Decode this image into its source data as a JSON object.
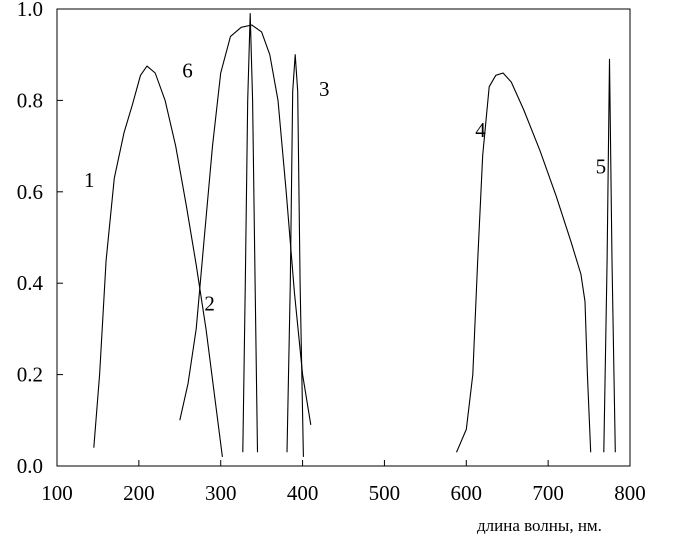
{
  "chart_data": {
    "type": "line",
    "title": "",
    "xlabel": "длина волны, нм.",
    "ylabel": "",
    "xlim": [
      100,
      800
    ],
    "ylim": [
      0,
      1.0
    ],
    "xticks": [
      100,
      200,
      300,
      400,
      500,
      600,
      700,
      800
    ],
    "yticks": [
      0.0,
      0.2,
      0.4,
      0.6,
      0.8,
      1.0
    ],
    "ytick_labels": [
      "0.0",
      "0.2",
      "0.4",
      "0.6",
      "0.8",
      "1.0"
    ],
    "grid": false,
    "legend": "none",
    "series": [
      {
        "name": "1",
        "label_at": [
          133,
          0.61
        ],
        "points": [
          [
            145,
            0.04
          ],
          [
            152,
            0.2
          ],
          [
            160,
            0.45
          ],
          [
            170,
            0.63
          ],
          [
            182,
            0.73
          ],
          [
            192,
            0.79
          ],
          [
            202,
            0.855
          ],
          [
            210,
            0.875
          ],
          [
            220,
            0.86
          ],
          [
            232,
            0.8
          ],
          [
            245,
            0.7
          ],
          [
            258,
            0.57
          ],
          [
            270,
            0.44
          ],
          [
            282,
            0.3
          ],
          [
            292,
            0.16
          ],
          [
            302,
            0.02
          ]
        ]
      },
      {
        "name": "2",
        "label_at": [
          280,
          0.34
        ],
        "points": [
          [
            327,
            0.03
          ],
          [
            330,
            0.4
          ],
          [
            333,
            0.8
          ],
          [
            336,
            0.99
          ],
          [
            339,
            0.8
          ],
          [
            342,
            0.4
          ],
          [
            345,
            0.03
          ]
        ]
      },
      {
        "name": "3",
        "label_at": [
          420,
          0.81
        ],
        "points": [
          [
            381,
            0.03
          ],
          [
            385,
            0.4
          ],
          [
            388,
            0.82
          ],
          [
            391,
            0.9
          ],
          [
            394,
            0.82
          ],
          [
            397,
            0.4
          ],
          [
            401,
            0.02
          ]
        ]
      },
      {
        "name": "4",
        "label_at": [
          611,
          0.72
        ],
        "points": [
          [
            588,
            0.03
          ],
          [
            600,
            0.08
          ],
          [
            608,
            0.2
          ],
          [
            614,
            0.45
          ],
          [
            620,
            0.68
          ],
          [
            628,
            0.83
          ],
          [
            636,
            0.855
          ],
          [
            645,
            0.86
          ],
          [
            655,
            0.84
          ],
          [
            670,
            0.78
          ],
          [
            690,
            0.69
          ],
          [
            710,
            0.59
          ],
          [
            728,
            0.49
          ],
          [
            740,
            0.42
          ],
          [
            745,
            0.36
          ],
          [
            748,
            0.2
          ],
          [
            752,
            0.03
          ]
        ]
      },
      {
        "name": "5",
        "label_at": [
          758,
          0.64
        ],
        "points": [
          [
            768,
            0.03
          ],
          [
            772,
            0.45
          ],
          [
            775,
            0.89
          ],
          [
            778,
            0.45
          ],
          [
            782,
            0.03
          ]
        ]
      },
      {
        "name": "6",
        "label_at": [
          253,
          0.85
        ],
        "points": [
          [
            250,
            0.1
          ],
          [
            260,
            0.18
          ],
          [
            270,
            0.3
          ],
          [
            280,
            0.5
          ],
          [
            290,
            0.7
          ],
          [
            300,
            0.86
          ],
          [
            312,
            0.94
          ],
          [
            325,
            0.96
          ],
          [
            338,
            0.965
          ],
          [
            350,
            0.95
          ],
          [
            360,
            0.9
          ],
          [
            370,
            0.8
          ],
          [
            380,
            0.6
          ],
          [
            390,
            0.38
          ],
          [
            400,
            0.2
          ],
          [
            410,
            0.09
          ]
        ]
      }
    ]
  }
}
